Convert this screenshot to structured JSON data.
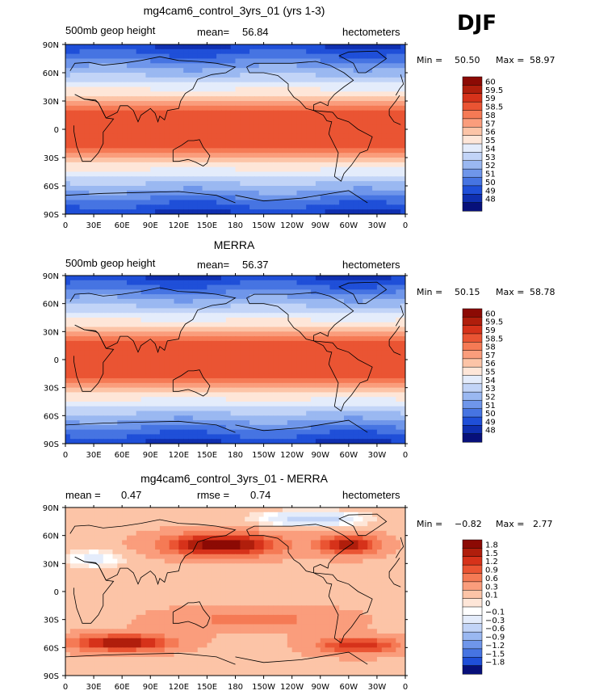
{
  "season_label": "DJF",
  "chart_data": [
    {
      "type": "heatmap",
      "title": "mg4cam6_control_3yrs_01 (yrs 1-3)",
      "variable": "500mb geop height",
      "mean_label": "mean=",
      "mean_value": "56.84",
      "units": "hectometers",
      "min_label": "Min =",
      "min_value": "50.50",
      "max_label": "Max =",
      "max_value": "58.97",
      "ylim": [
        -90,
        90
      ],
      "xlim": [
        0,
        360
      ],
      "xticks": [
        "0",
        "30E",
        "60E",
        "90E",
        "120E",
        "150E",
        "180",
        "150W",
        "120W",
        "90W",
        "60W",
        "30W",
        "0"
      ],
      "yticks": [
        "90N",
        "60N",
        "30N",
        "0",
        "30S",
        "60S",
        "90S"
      ],
      "colorbar_labels": [
        "60",
        "59.5",
        "59",
        "58.5",
        "58",
        "57",
        "56",
        "55",
        "54",
        "53",
        "52",
        "51",
        "50",
        "49",
        "48"
      ],
      "colorbar_colors": [
        "#8c0a04",
        "#b01e0c",
        "#d6321a",
        "#ea5433",
        "#f57a55",
        "#fa9d7c",
        "#fcc4a7",
        "#fee6d8",
        "#e4ecfb",
        "#c2d4f7",
        "#9ab8f1",
        "#6f96ea",
        "#4674e2",
        "#1f4fd8",
        "#0f2fb0",
        "#07107a"
      ],
      "field": "z500"
    },
    {
      "type": "heatmap",
      "title": "MERRA",
      "variable": "500mb geop height",
      "mean_label": "mean=",
      "mean_value": "56.37",
      "units": "hectometers",
      "min_label": "Min =",
      "min_value": "50.15",
      "max_label": "Max =",
      "max_value": "58.78",
      "ylim": [
        -90,
        90
      ],
      "xlim": [
        0,
        360
      ],
      "xticks": [
        "0",
        "30E",
        "60E",
        "90E",
        "120E",
        "150E",
        "180",
        "150W",
        "120W",
        "90W",
        "60W",
        "30W",
        "0"
      ],
      "yticks": [
        "90N",
        "60N",
        "30N",
        "0",
        "30S",
        "60S",
        "90S"
      ],
      "colorbar_labels": [
        "60",
        "59.5",
        "59",
        "58.5",
        "58",
        "57",
        "56",
        "55",
        "54",
        "53",
        "52",
        "51",
        "50",
        "49",
        "48"
      ],
      "colorbar_colors": [
        "#8c0a04",
        "#b01e0c",
        "#d6321a",
        "#ea5433",
        "#f57a55",
        "#fa9d7c",
        "#fcc4a7",
        "#fee6d8",
        "#e4ecfb",
        "#c2d4f7",
        "#9ab8f1",
        "#6f96ea",
        "#4674e2",
        "#1f4fd8",
        "#0f2fb0",
        "#07107a"
      ],
      "field": "z500"
    },
    {
      "type": "heatmap",
      "title": "mg4cam6_control_3yrs_01 - MERRA",
      "variable": "",
      "mean_label": "mean =",
      "mean_value": "0.47",
      "rmse_label": "rmse =",
      "rmse_value": "0.74",
      "units": "hectometers",
      "min_label": "Min =",
      "min_value": "−0.82",
      "max_label": "Max =",
      "max_value": "2.77",
      "ylim": [
        -90,
        90
      ],
      "xlim": [
        0,
        360
      ],
      "xticks": [
        "0",
        "30E",
        "60E",
        "90E",
        "120E",
        "150E",
        "180",
        "150W",
        "120W",
        "90W",
        "60W",
        "30W",
        "0"
      ],
      "yticks": [
        "90N",
        "60N",
        "30N",
        "0",
        "30S",
        "60S",
        "90S"
      ],
      "colorbar_labels": [
        "1.8",
        "1.5",
        "1.2",
        "0.9",
        "0.6",
        "0.3",
        "0.1",
        "0",
        "−0.1",
        "−0.3",
        "−0.6",
        "−0.9",
        "−1.2",
        "−1.5",
        "−1.8"
      ],
      "colorbar_colors": [
        "#8c0a04",
        "#b01e0c",
        "#d6321a",
        "#ea5433",
        "#f57a55",
        "#fa9d7c",
        "#fcc4a7",
        "#fee6d8",
        "#ffffff",
        "#e4ecfb",
        "#c2d4f7",
        "#9ab8f1",
        "#6f96ea",
        "#4674e2",
        "#1f4fd8",
        "#07107a"
      ],
      "field": "diff"
    }
  ]
}
